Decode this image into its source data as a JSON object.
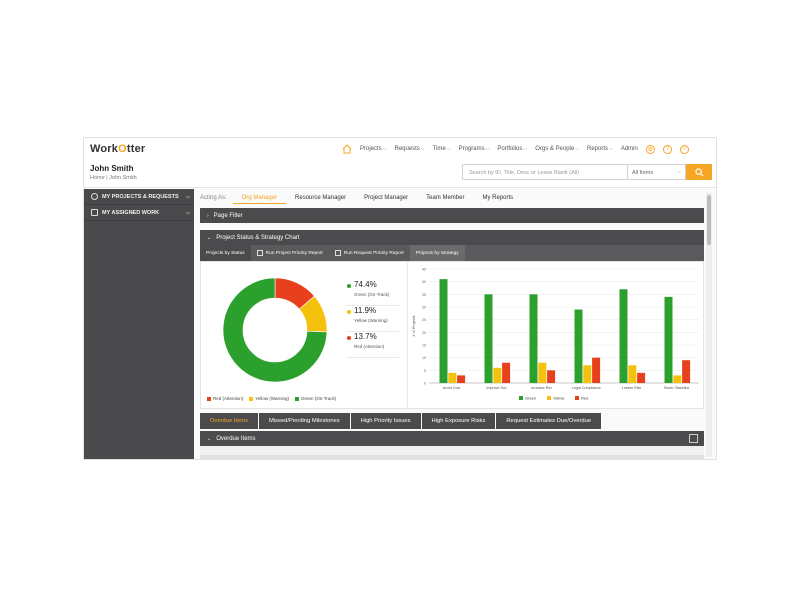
{
  "logo": {
    "text_pre": "Work",
    "text_o": "O",
    "text_post": "tter"
  },
  "nav": {
    "items": [
      "Projects",
      "Requests",
      "Time",
      "Programs",
      "Portfolios",
      "Orgs & People",
      "Reports",
      "Admin"
    ],
    "caret": "⌵"
  },
  "header": {
    "user_name": "John Smith",
    "breadcrumb": "Home  |  John Smith",
    "search_placeholder": "Search by ID, Title, Desc or Leave Blank (All)",
    "scope_value": "All Items"
  },
  "sidebar": {
    "items": [
      {
        "label": "MY PROJECTS & REQUESTS"
      },
      {
        "label": "MY ASSIGNED WORK"
      }
    ]
  },
  "role_tabs": {
    "acting_as": "Acting As:",
    "tabs": [
      "Org Manager",
      "Resource Manager",
      "Project Manager",
      "Team Member",
      "My Reports"
    ],
    "active": 0
  },
  "panels": {
    "page_filter": "Page Filter",
    "project_status": "Project Status & Strategy Chart",
    "overdue_items": "Overdue Items"
  },
  "sub_tabs": {
    "status": "Projects by Status",
    "priority_report": "Run Project Priority Report",
    "request_report": "Run Request Priority Report",
    "strategy": "Projects by Strategy"
  },
  "status_stats": [
    {
      "pct": "74.4%",
      "label": "Green (On-Track)",
      "color": "#2ca02c"
    },
    {
      "pct": "11.9%",
      "label": "Yellow (Warning)",
      "color": "#f4c20d"
    },
    {
      "pct": "13.7%",
      "label": "Red (Attention)",
      "color": "#e8401c"
    }
  ],
  "donut_legend": [
    "Red (Attention)",
    "Yellow (Warning)",
    "Green (On-Track)"
  ],
  "bottom_tabs": {
    "tabs": [
      "Overdue Items",
      "Missed/Pending Milestones",
      "High Priority Issues",
      "High Exposure Risks",
      "Request Estimates Due/Overdue"
    ],
    "active": 0
  },
  "colors": {
    "accent": "#f5a623",
    "green": "#2ca02c",
    "yellow": "#f4c20d",
    "red": "#e8401c",
    "dark_bar": "#4b4b4d"
  },
  "chart_data": [
    {
      "type": "pie",
      "variant": "donut",
      "title": "Projects by Status",
      "categories": [
        "Green (On-Track)",
        "Yellow (Warning)",
        "Red (Attention)"
      ],
      "values": [
        74.4,
        11.9,
        13.7
      ],
      "colors": [
        "#2ca02c",
        "#f4c20d",
        "#e8401c"
      ],
      "legend": "bottom-left"
    },
    {
      "type": "bar",
      "title": "Projects by Strategy",
      "categories": [
        "Avoid Cost",
        "Improve Svc",
        "Increase Rev",
        "Legal Compliance",
        "Lessen Risk",
        "Small / Baseline"
      ],
      "series": [
        {
          "name": "Green",
          "color": "#2ca02c",
          "values": [
            41,
            35,
            35,
            29,
            37,
            34
          ]
        },
        {
          "name": "Yellow",
          "color": "#f4c20d",
          "values": [
            4,
            6,
            8,
            7,
            7,
            3
          ]
        },
        {
          "name": "Red",
          "color": "#e8401c",
          "values": [
            3,
            8,
            5,
            10,
            4,
            9
          ]
        }
      ],
      "ylabel": "# of Projects",
      "ylim": [
        0,
        45
      ],
      "yticks": [
        0,
        5,
        10,
        15,
        20,
        25,
        30,
        35,
        40,
        45
      ],
      "grid": true,
      "legend": "bottom-right"
    }
  ]
}
